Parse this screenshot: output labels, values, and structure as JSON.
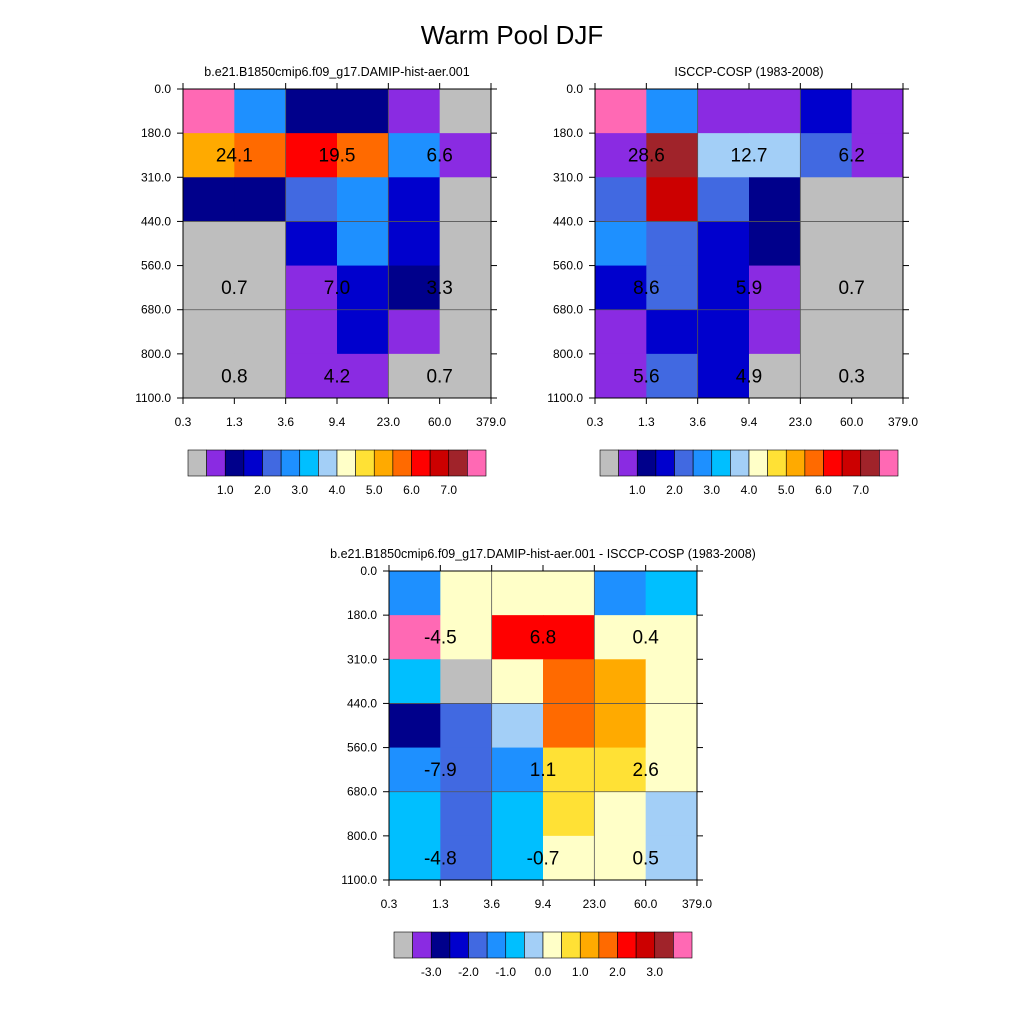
{
  "title": "Warm Pool DJF",
  "colors": {
    "abs_palette": [
      "#bebebe",
      "#8a2be2",
      "#00008b",
      "#0000cd",
      "#4169e1",
      "#1e90ff",
      "#00bfff",
      "#a3cff7",
      "#ffffc8",
      "#ffe135",
      "#ffaa00",
      "#ff6a00",
      "#ff0000",
      "#cc0000",
      "#a0232a",
      "#ff69b4"
    ],
    "diff_palette": [
      "#bebebe",
      "#8a2be2",
      "#00008b",
      "#0000cd",
      "#4169e1",
      "#1e90ff",
      "#00bfff",
      "#a3cff7",
      "#ffffc8",
      "#ffe135",
      "#ffaa00",
      "#ff6a00",
      "#ff0000",
      "#cc0000",
      "#a0232a",
      "#ff69b4"
    ]
  },
  "chart_data": [
    {
      "type": "heatmap",
      "id": "model",
      "title": "b.e21.B1850cmip6.f09_g17.DAMIP-hist-aer.001",
      "x_tick_labels": [
        "0.3",
        "1.3",
        "3.6",
        "9.4",
        "23.0",
        "60.0",
        "379.0"
      ],
      "y_tick_labels": [
        "0.0",
        "180.0",
        "310.0",
        "440.0",
        "560.0",
        "680.0",
        "800.0",
        "1100.0"
      ],
      "cell_color_index": [
        [
          15,
          5,
          2,
          2,
          1,
          0
        ],
        [
          10,
          11,
          12,
          11,
          5,
          1
        ],
        [
          2,
          2,
          4,
          5,
          3,
          0
        ],
        [
          0,
          0,
          3,
          5,
          3,
          0
        ],
        [
          0,
          0,
          1,
          3,
          2,
          0
        ],
        [
          0,
          0,
          1,
          3,
          1,
          0
        ],
        [
          0,
          0,
          1,
          1,
          0,
          0
        ]
      ],
      "labels": [
        {
          "row": 1,
          "col": 1,
          "text": "24.1"
        },
        {
          "row": 1,
          "col": 3,
          "text": "19.5"
        },
        {
          "row": 1,
          "col": 5,
          "text": "6.6"
        },
        {
          "row": 4,
          "col": 1,
          "text": "0.7"
        },
        {
          "row": 4,
          "col": 3,
          "text": "7.0"
        },
        {
          "row": 4,
          "col": 5,
          "text": "3.3"
        },
        {
          "row": 6,
          "col": 1,
          "text": "0.8"
        },
        {
          "row": 6,
          "col": 3,
          "text": "4.2"
        },
        {
          "row": 6,
          "col": 5,
          "text": "0.7"
        }
      ],
      "colorbar": {
        "palette": "abs_palette",
        "labels": [
          "1.0",
          "2.0",
          "3.0",
          "4.0",
          "5.0",
          "6.0",
          "7.0"
        ]
      }
    },
    {
      "type": "heatmap",
      "id": "obs",
      "title": "ISCCP-COSP (1983-2008)",
      "x_tick_labels": [
        "0.3",
        "1.3",
        "3.6",
        "9.4",
        "23.0",
        "60.0",
        "379.0"
      ],
      "y_tick_labels": [
        "0.0",
        "180.0",
        "310.0",
        "440.0",
        "560.0",
        "680.0",
        "800.0",
        "1100.0"
      ],
      "cell_color_index": [
        [
          15,
          5,
          1,
          1,
          3,
          1
        ],
        [
          1,
          14,
          7,
          7,
          4,
          1
        ],
        [
          4,
          13,
          4,
          2,
          0,
          0
        ],
        [
          5,
          4,
          3,
          2,
          0,
          0
        ],
        [
          3,
          4,
          3,
          1,
          0,
          0
        ],
        [
          1,
          3,
          3,
          1,
          0,
          0
        ],
        [
          1,
          4,
          3,
          0,
          0,
          0
        ]
      ],
      "labels": [
        {
          "row": 1,
          "col": 1,
          "text": "28.6"
        },
        {
          "row": 1,
          "col": 3,
          "text": "12.7"
        },
        {
          "row": 1,
          "col": 5,
          "text": "6.2"
        },
        {
          "row": 4,
          "col": 1,
          "text": "8.6"
        },
        {
          "row": 4,
          "col": 3,
          "text": "5.9"
        },
        {
          "row": 4,
          "col": 5,
          "text": "0.7"
        },
        {
          "row": 6,
          "col": 1,
          "text": "5.6"
        },
        {
          "row": 6,
          "col": 3,
          "text": "4.9"
        },
        {
          "row": 6,
          "col": 5,
          "text": "0.3"
        }
      ],
      "colorbar": {
        "palette": "abs_palette",
        "labels": [
          "1.0",
          "2.0",
          "3.0",
          "4.0",
          "5.0",
          "6.0",
          "7.0"
        ]
      }
    },
    {
      "type": "heatmap",
      "id": "diff",
      "title": "b.e21.B1850cmip6.f09_g17.DAMIP-hist-aer.001 - ISCCP-COSP (1983-2008)",
      "x_tick_labels": [
        "0.3",
        "1.3",
        "3.6",
        "9.4",
        "23.0",
        "60.0",
        "379.0"
      ],
      "y_tick_labels": [
        "0.0",
        "180.0",
        "310.0",
        "440.0",
        "560.0",
        "680.0",
        "800.0",
        "1100.0"
      ],
      "cell_color_index": [
        [
          5,
          8,
          8,
          8,
          5,
          6
        ],
        [
          15,
          8,
          12,
          12,
          8,
          8
        ],
        [
          6,
          0,
          8,
          11,
          10,
          8
        ],
        [
          2,
          4,
          7,
          11,
          10,
          8
        ],
        [
          5,
          4,
          5,
          9,
          9,
          8
        ],
        [
          6,
          4,
          6,
          9,
          8,
          7
        ],
        [
          6,
          4,
          6,
          8,
          8,
          7
        ]
      ],
      "labels": [
        {
          "row": 1,
          "col": 1,
          "text": "-4.5"
        },
        {
          "row": 1,
          "col": 3,
          "text": "6.8"
        },
        {
          "row": 1,
          "col": 5,
          "text": "0.4"
        },
        {
          "row": 4,
          "col": 1,
          "text": "-7.9"
        },
        {
          "row": 4,
          "col": 3,
          "text": "1.1"
        },
        {
          "row": 4,
          "col": 5,
          "text": "2.6"
        },
        {
          "row": 6,
          "col": 1,
          "text": "-4.8"
        },
        {
          "row": 6,
          "col": 3,
          "text": "-0.7"
        },
        {
          "row": 6,
          "col": 5,
          "text": "0.5"
        }
      ],
      "colorbar": {
        "palette": "diff_palette",
        "labels": [
          "-3.0",
          "-2.0",
          "-1.0",
          "0.0",
          "1.0",
          "2.0",
          "3.0"
        ]
      }
    }
  ]
}
